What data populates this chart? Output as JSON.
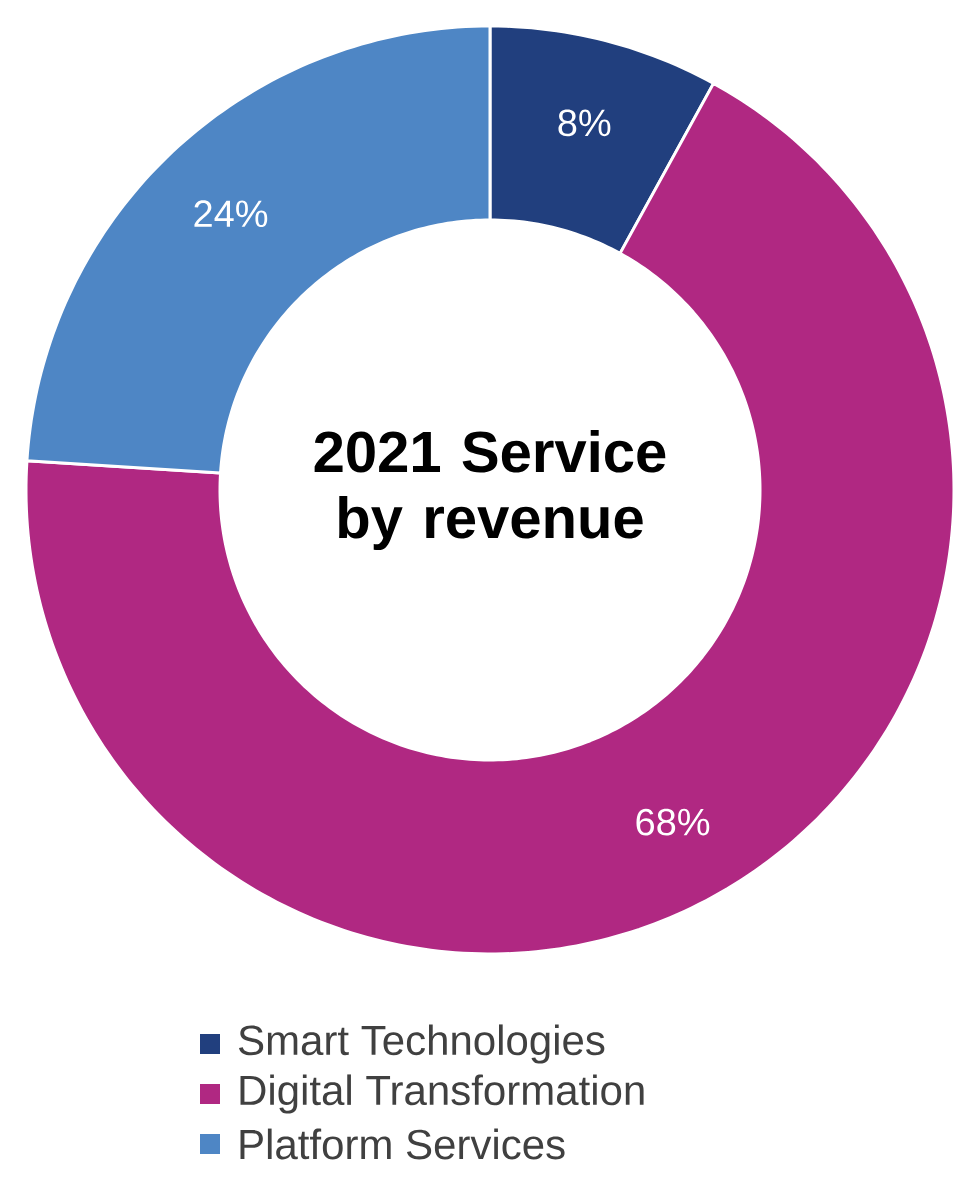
{
  "chart_data": {
    "type": "donut",
    "title": "2021 Service by revenue",
    "categories": [
      "Smart Technologies",
      "Digital Transformation",
      "Platform Services"
    ],
    "values": [
      8,
      68,
      24
    ],
    "colors": [
      "#213f7e",
      "#b02882",
      "#4e86c5"
    ],
    "value_labels": [
      "8%",
      "68%",
      "24%"
    ],
    "legend": "bottom"
  }
}
